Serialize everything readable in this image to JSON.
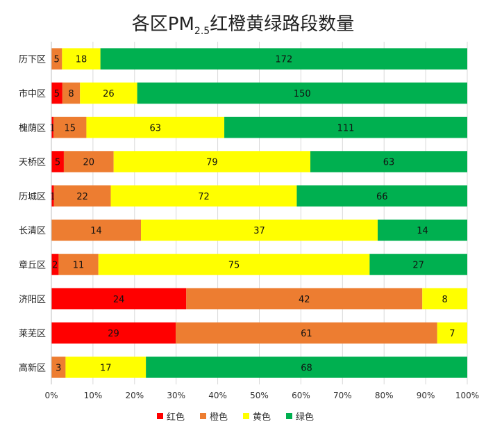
{
  "chart_data": {
    "type": "bar",
    "orientation": "horizontal",
    "stacked": "percent",
    "title_main": "各区PM",
    "title_sub": "2.5",
    "title_tail": "红橙黄绿路段数量",
    "categories": [
      "历下区",
      "市中区",
      "槐荫区",
      "天桥区",
      "历城区",
      "长清区",
      "章丘区",
      "济阳区",
      "莱芜区",
      "高新区"
    ],
    "series": [
      {
        "name": "红色",
        "color": "#ff0000",
        "values": [
          0,
          5,
          1,
          5,
          1,
          0,
          2,
          24,
          29,
          0
        ]
      },
      {
        "name": "橙色",
        "color": "#ed7d31",
        "values": [
          5,
          8,
          15,
          20,
          22,
          14,
          11,
          42,
          61,
          3
        ]
      },
      {
        "name": "黄色",
        "color": "#ffff00",
        "values": [
          18,
          26,
          63,
          79,
          72,
          37,
          75,
          8,
          7,
          17
        ]
      },
      {
        "name": "绿色",
        "color": "#00b050",
        "values": [
          172,
          150,
          111,
          63,
          66,
          14,
          27,
          0,
          0,
          68
        ]
      }
    ],
    "xticks": [
      "0%",
      "10%",
      "20%",
      "30%",
      "40%",
      "50%",
      "60%",
      "70%",
      "80%",
      "90%",
      "100%"
    ],
    "xlim": [
      0,
      100
    ],
    "grid": true,
    "legend_position": "bottom"
  }
}
